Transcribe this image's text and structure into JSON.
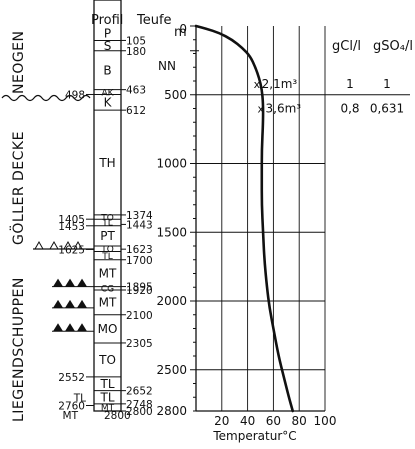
{
  "headers": {
    "profil": "Profil",
    "teufe": "Teufe",
    "unit_m": "m",
    "gcl": "gCl/l",
    "gso4": "gSO₄/l"
  },
  "tectonic_labels": {
    "goller_decke": "GÖLLER DECKE",
    "neogen": "NEOGEN",
    "liegendschuppen": "LIEGENDSCHUPPEN"
  },
  "profile_units": [
    {
      "label": "P",
      "top": 0,
      "bottom": 105
    },
    {
      "label": "S",
      "top": 105,
      "bottom": 180
    },
    {
      "label": "B",
      "top": 180,
      "bottom": 463
    },
    {
      "label": "AK",
      "top": 463,
      "bottom": 498
    },
    {
      "label": "K",
      "top": 498,
      "bottom": 612
    },
    {
      "label": "TH",
      "top": 612,
      "bottom": 1374
    },
    {
      "label": "TO",
      "top": 1374,
      "bottom": 1405
    },
    {
      "label": "TL",
      "top": 1405,
      "bottom": 1453
    },
    {
      "label": "PT",
      "top": 1453,
      "bottom": 1600
    },
    {
      "label": "TO",
      "top": 1600,
      "bottom": 1640
    },
    {
      "label": "TL",
      "top": 1640,
      "bottom": 1700
    },
    {
      "label": "MT",
      "top": 1700,
      "bottom": 1895
    },
    {
      "label": "CG",
      "top": 1895,
      "bottom": 1920
    },
    {
      "label": "MT",
      "top": 1920,
      "bottom": 2100
    },
    {
      "label": "MO",
      "top": 2100,
      "bottom": 2305
    },
    {
      "label": "TO",
      "top": 2305,
      "bottom": 2552
    },
    {
      "label": "TL",
      "top": 2552,
      "bottom": 2652
    },
    {
      "label": "TL",
      "top": 2652,
      "bottom": 2748
    },
    {
      "label": "MT",
      "top": 2748,
      "bottom": 2800
    }
  ],
  "right_depth_labels": [
    {
      "text": "105",
      "depth": 105
    },
    {
      "text": "180",
      "depth": 180
    },
    {
      "text": "463",
      "depth": 463
    },
    {
      "text": "612",
      "depth": 612
    },
    {
      "text": "1374",
      "depth": 1374
    },
    {
      "text": "1443",
      "depth": 1443
    },
    {
      "text": "1623",
      "depth": 1623
    },
    {
      "text": "1700",
      "depth": 1700
    },
    {
      "text": "1895",
      "depth": 1895
    },
    {
      "text": "1920",
      "depth": 1920
    },
    {
      "text": "2100",
      "depth": 2100
    },
    {
      "text": "2305",
      "depth": 2305
    },
    {
      "text": "2652",
      "depth": 2652
    },
    {
      "text": "2748",
      "depth": 2748
    },
    {
      "text": "2800",
      "depth": 2800
    }
  ],
  "left_depth_labels": [
    {
      "text": "498",
      "depth": 498
    },
    {
      "text": "1405",
      "depth": 1405
    },
    {
      "text": "1453",
      "depth": 1453
    },
    {
      "text": "1625",
      "depth": 1625
    },
    {
      "text": "2552",
      "depth": 2552
    },
    {
      "text": "2760",
      "depth": 2760
    }
  ],
  "bottom_left_labels": [
    {
      "text": "TL",
      "depth": 2700
    },
    {
      "text": "MT",
      "depth": 2830
    },
    {
      "text": "2800",
      "depth": 2830
    }
  ],
  "chart_data": {
    "type": "line",
    "xlabel": "Temperatur°C",
    "ylabel": "Teufe m",
    "xlim": [
      0,
      100
    ],
    "ylim": [
      0,
      2800
    ],
    "y_inverted": true,
    "grid": true,
    "x_ticks": [
      "20",
      "40",
      "60",
      "80",
      "100"
    ],
    "y_ticks": [
      "0",
      "500",
      "1000",
      "1500",
      "2000",
      "2500",
      "2800"
    ],
    "nn_label": "NN",
    "nn_depth": 180,
    "series": [
      {
        "x": [
          0,
          8,
          18,
          28,
          36,
          42,
          46,
          49,
          51,
          52,
          52,
          51,
          51,
          51,
          52,
          53,
          55,
          57,
          60,
          64,
          68,
          72,
          75
        ],
        "y": [
          0,
          20,
          50,
          100,
          160,
          220,
          300,
          380,
          460,
          560,
          700,
          900,
          1100,
          1300,
          1500,
          1700,
          1900,
          2050,
          2200,
          2400,
          2550,
          2700,
          2800
        ]
      }
    ],
    "annotations": [
      {
        "text": "2,1m³",
        "x": 47,
        "depth": 420
      },
      {
        "text": "3,6m³",
        "x": 50,
        "depth": 600
      }
    ],
    "table": {
      "rows": [
        {
          "depth": 420,
          "gcl": "1",
          "gso4": "1"
        },
        {
          "depth": 600,
          "gcl": "0,8",
          "gso4": "0,631"
        }
      ]
    }
  }
}
